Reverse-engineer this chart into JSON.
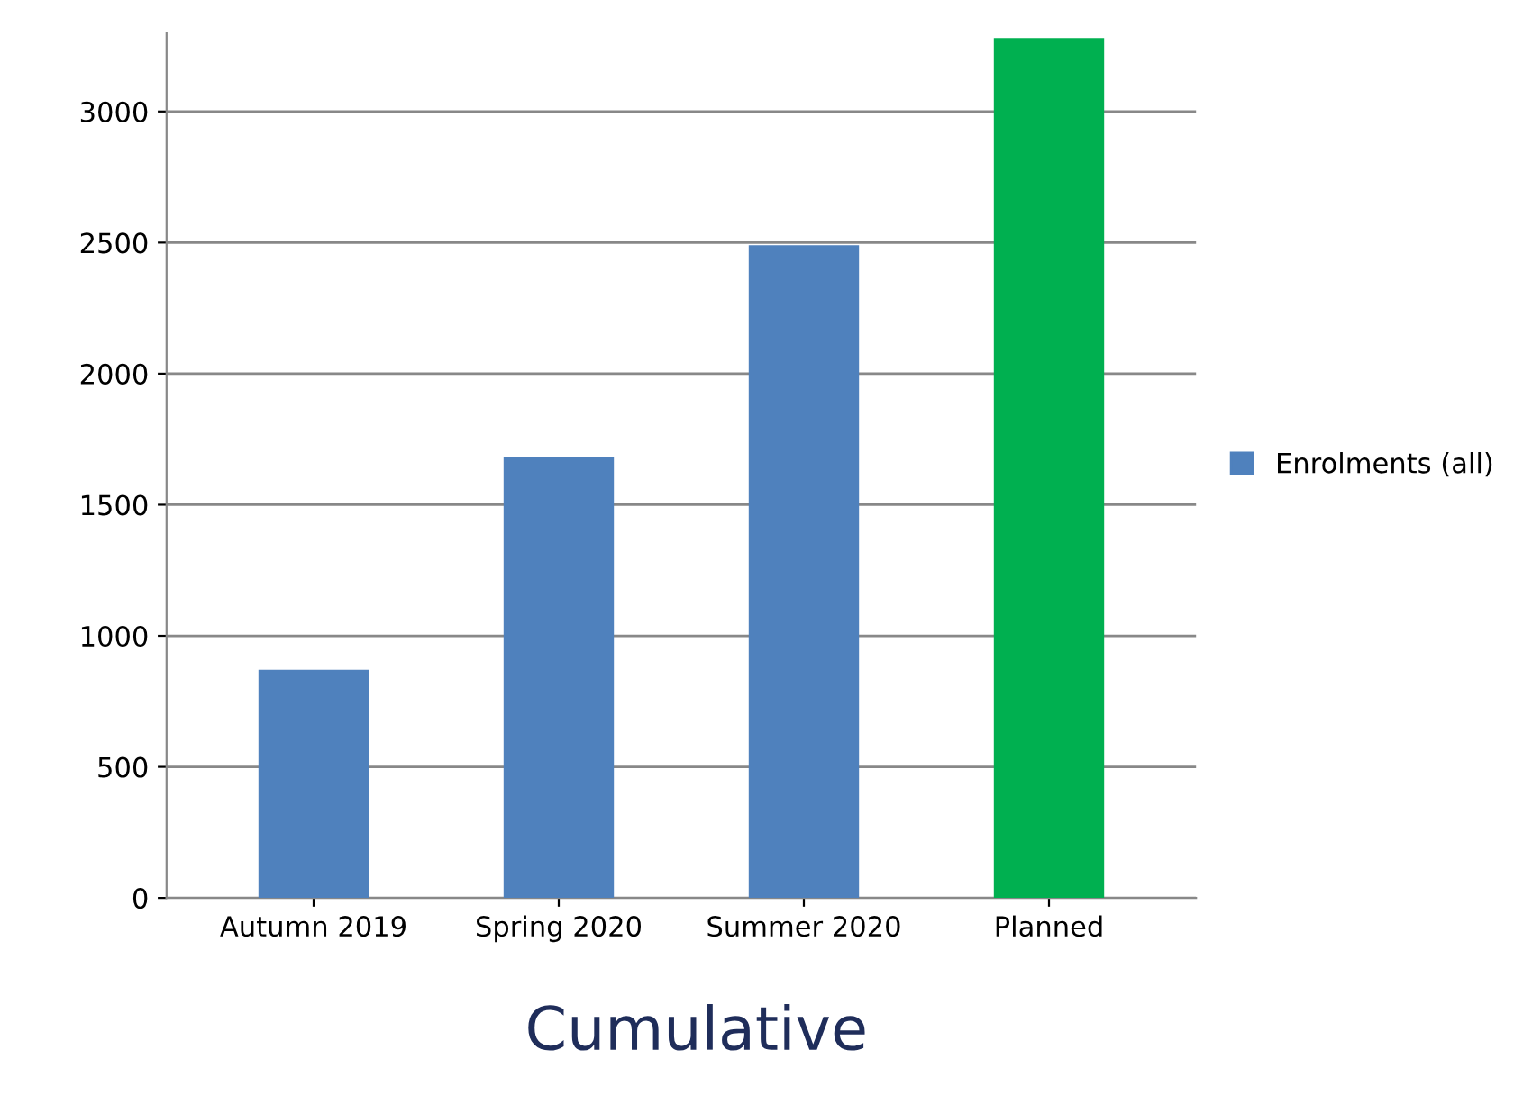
{
  "chart_data": {
    "type": "bar",
    "title": "Cumulative",
    "categories": [
      "Autumn 2019",
      "Spring 2020",
      "Summer 2020",
      "Planned"
    ],
    "series": [
      {
        "name": "Enrolments (all)",
        "color": "#4f81bd",
        "colors": [
          "#4f81bd",
          "#4f81bd",
          "#4f81bd",
          "#00b050"
        ],
        "values": [
          870,
          1680,
          2490,
          3280
        ]
      }
    ],
    "ylim": [
      0,
      3300
    ],
    "yticks": [
      0,
      500,
      1000,
      1500,
      2000,
      2500,
      3000
    ],
    "grid": "y",
    "legend": "right"
  }
}
